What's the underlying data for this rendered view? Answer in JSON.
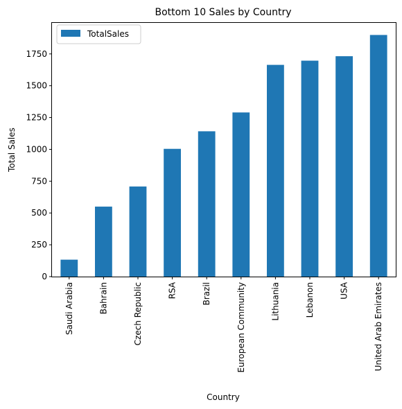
{
  "chart_data": {
    "type": "bar",
    "title": "Bottom 10 Sales by Country",
    "xlabel": "Country",
    "ylabel": "Total Sales",
    "categories": [
      "Saudi Arabia",
      "Bahrain",
      "Czech Republic",
      "RSA",
      "Brazil",
      "European Community",
      "Lithuania",
      "Lebanon",
      "USA",
      "United Arab Emirates"
    ],
    "series": [
      {
        "name": "TotalSales",
        "color": "#1f77b4",
        "values": [
          133,
          550,
          708,
          1004,
          1142,
          1290,
          1664,
          1697,
          1732,
          1899
        ]
      }
    ],
    "yticks": [
      0,
      250,
      500,
      750,
      1000,
      1250,
      1500,
      1750
    ],
    "ylim": [
      0,
      1994
    ],
    "grid": false,
    "legend": "top-left"
  }
}
